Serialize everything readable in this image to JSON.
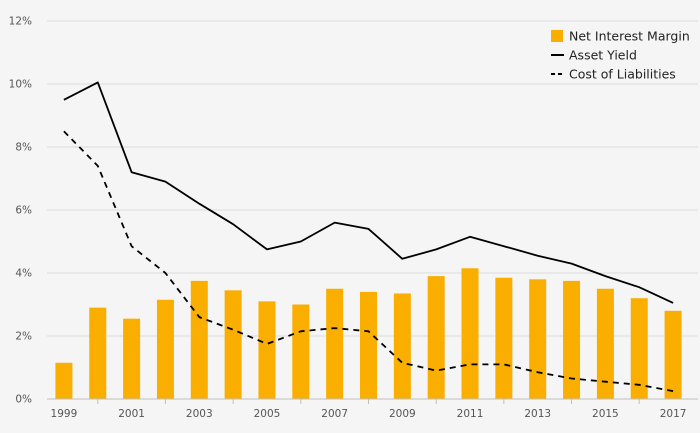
{
  "chart_data": {
    "type": "bar+line",
    "title": "",
    "xlabel": "",
    "ylabel": "",
    "ylim": [
      0,
      12
    ],
    "grid": true,
    "legend_position": "top-right",
    "categories": [
      "1999",
      "2000",
      "2001",
      "2002",
      "2003",
      "2004",
      "2005",
      "2006",
      "2007",
      "2008",
      "2009",
      "2010",
      "2011",
      "2012",
      "2013",
      "2014",
      "2015",
      "2016",
      "2017"
    ],
    "x_tick_labels": [
      "1999",
      "2001",
      "2003",
      "2005",
      "2007",
      "2009",
      "2011",
      "2013",
      "2015",
      "2017"
    ],
    "y_ticks": [
      0,
      2,
      4,
      6,
      8,
      10,
      12
    ],
    "y_tick_labels": [
      "0%",
      "2%",
      "4%",
      "6%",
      "8%",
      "10%",
      "12%"
    ],
    "series": [
      {
        "name": "Net Interest Margin",
        "kind": "bar",
        "color": "#f9ae00",
        "values": [
          1.15,
          2.9,
          2.55,
          3.15,
          3.75,
          3.45,
          3.1,
          3.0,
          3.5,
          3.4,
          3.35,
          3.9,
          4.15,
          3.85,
          3.8,
          3.75,
          3.5,
          3.2,
          2.8
        ]
      },
      {
        "name": "Asset Yield",
        "kind": "line",
        "style": "solid",
        "color": "#000000",
        "values": [
          9.5,
          10.05,
          7.2,
          6.9,
          6.2,
          5.55,
          4.75,
          5.0,
          5.6,
          5.4,
          4.45,
          4.75,
          5.15,
          4.85,
          4.55,
          4.3,
          3.9,
          3.55,
          3.05
        ]
      },
      {
        "name": "Cost of Liabilities",
        "kind": "line",
        "style": "dashed",
        "color": "#000000",
        "values": [
          8.5,
          7.4,
          4.85,
          4.0,
          2.6,
          2.2,
          1.75,
          2.15,
          2.25,
          2.15,
          1.15,
          0.9,
          1.1,
          1.1,
          0.85,
          0.65,
          0.55,
          0.45,
          0.25
        ]
      }
    ],
    "colors": {
      "background": "#f5f5f5",
      "gridline": "#dcdcdc",
      "axis": "#bfbfbf",
      "bar": "#f9ae00"
    }
  }
}
